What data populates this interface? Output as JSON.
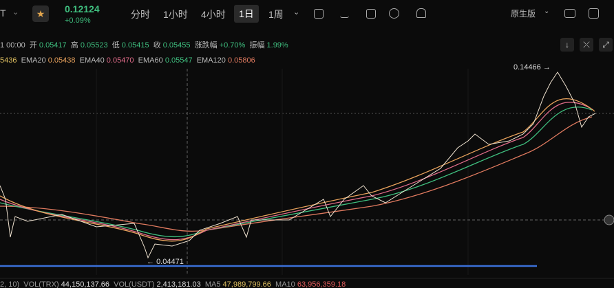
{
  "toolbar": {
    "symbol": "T",
    "price": "0.12124",
    "change": "+0.09%",
    "intervals": [
      "分时",
      "1小时",
      "4小时",
      "1日",
      "1周"
    ],
    "mode": "原生版"
  },
  "ohlc": {
    "time": "1 00:00",
    "open_label": "开",
    "open": "0.05417",
    "high_label": "高",
    "high": "0.05523",
    "low_label": "低",
    "low": "0.05415",
    "close_label": "收",
    "close": "0.05455",
    "change_label": "涨跌幅",
    "change": "+0.70%",
    "amplitude_label": "振幅",
    "amplitude": "1.99%"
  },
  "ema": {
    "first": "5436",
    "items": [
      {
        "name": "EMA20",
        "value": "0.05438"
      },
      {
        "name": "EMA40",
        "value": "0.05470"
      },
      {
        "name": "EMA60",
        "value": "0.05547"
      },
      {
        "name": "EMA120",
        "value": "0.05806"
      }
    ]
  },
  "annotations": {
    "high": "0.14466",
    "low": "0.04471"
  },
  "volume": {
    "prefix": "2, 10)",
    "items": [
      {
        "name": "VOL(TRX)",
        "value": "44,150,137.66"
      },
      {
        "name": "VOL(USDT)",
        "value": "2,413,181.03"
      },
      {
        "name": "MA5",
        "value": "47,989,799.66"
      },
      {
        "name": "MA10",
        "value": "63,956,359.18"
      }
    ]
  }
}
